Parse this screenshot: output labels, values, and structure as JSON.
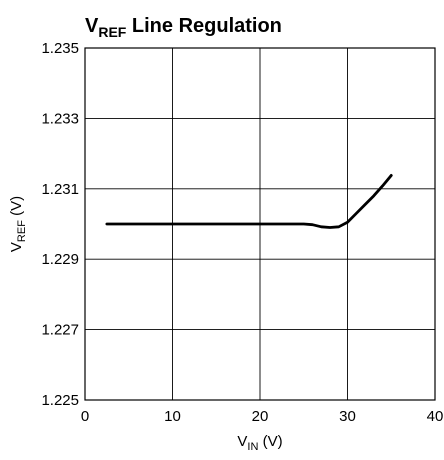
{
  "chart_data": {
    "type": "line",
    "title": {
      "main": "V",
      "sub": "REF",
      "rest": " Line Regulation"
    },
    "xlabel": {
      "main": "V",
      "sub": "IN",
      "rest": " (V)"
    },
    "ylabel": {
      "main": "V",
      "sub": "REF",
      "rest": " (V)"
    },
    "xlim": [
      0,
      40
    ],
    "ylim": [
      1.225,
      1.235
    ],
    "x_ticks": [
      0,
      10,
      20,
      30,
      40
    ],
    "x_tick_labels": [
      "0",
      "10",
      "20",
      "30",
      "40"
    ],
    "y_ticks": [
      1.225,
      1.227,
      1.229,
      1.231,
      1.233,
      1.235
    ],
    "y_tick_labels": [
      "1.225",
      "1.227",
      "1.229",
      "1.231",
      "1.233",
      "1.235"
    ],
    "grid": true,
    "series": [
      {
        "color": "#000000",
        "x": [
          2.5,
          5,
          10,
          15,
          20,
          25,
          26,
          27,
          28,
          29,
          30,
          31,
          32,
          33,
          34,
          35
        ],
        "y": [
          1.23,
          1.23,
          1.23,
          1.23,
          1.23,
          1.23,
          1.22998,
          1.22992,
          1.2299,
          1.22992,
          1.23005,
          1.2303,
          1.23055,
          1.2308,
          1.23108,
          1.23138
        ]
      }
    ]
  }
}
